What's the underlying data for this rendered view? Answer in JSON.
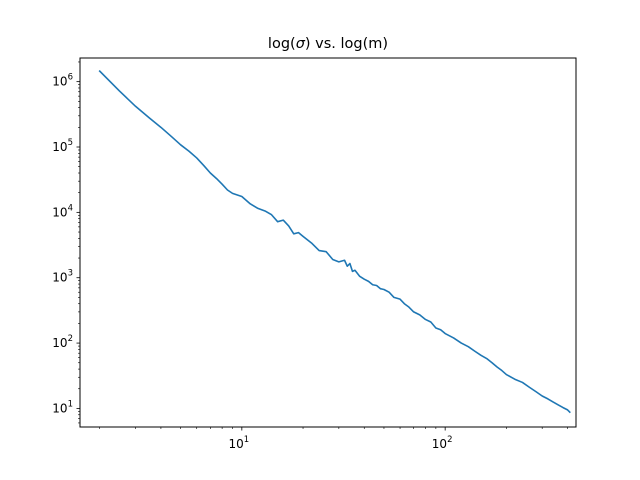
{
  "chart_data": {
    "type": "line",
    "title_parts": {
      "pre": "log(",
      "sym": "σ",
      "post": ") vs. log(m)"
    },
    "xlabel": "",
    "ylabel": "",
    "xscale": "log",
    "yscale": "log",
    "xlim": [
      1.6,
      440
    ],
    "ylim": [
      5.2,
      2300000
    ],
    "grid": false,
    "line_color": "#1f77b4",
    "x_ticks": [
      {
        "value": 10,
        "base": "10",
        "exp": "1"
      },
      {
        "value": 100,
        "base": "10",
        "exp": "2"
      }
    ],
    "y_ticks": [
      {
        "value": 10,
        "base": "10",
        "exp": "1"
      },
      {
        "value": 100,
        "base": "10",
        "exp": "2"
      },
      {
        "value": 1000,
        "base": "10",
        "exp": "3"
      },
      {
        "value": 10000,
        "base": "10",
        "exp": "4"
      },
      {
        "value": 100000,
        "base": "10",
        "exp": "5"
      },
      {
        "value": 1000000,
        "base": "10",
        "exp": "6"
      }
    ],
    "series": [
      {
        "x": [
          2,
          2.5,
          3,
          3.5,
          4,
          4.5,
          5,
          5.5,
          6,
          6.5,
          7,
          7.5,
          8,
          8.5,
          9,
          10,
          11,
          12,
          13,
          14,
          15,
          16,
          17,
          18,
          19,
          20,
          22,
          24,
          26,
          28,
          30,
          32,
          33,
          34,
          35,
          36,
          38,
          40,
          42,
          44,
          46,
          48,
          50,
          53,
          56,
          60,
          63,
          66,
          70,
          75,
          80,
          85,
          90,
          95,
          100,
          110,
          120,
          130,
          140,
          150,
          160,
          170,
          180,
          190,
          200,
          220,
          240,
          260,
          280,
          300,
          320,
          340,
          360,
          380,
          400,
          410
        ],
        "y": [
          1450000,
          720000,
          420000,
          280000,
          200000,
          145000,
          108000,
          86000,
          68000,
          52000,
          40000,
          33000,
          27000,
          22000,
          19500,
          17500,
          13500,
          11500,
          10500,
          9200,
          7200,
          7600,
          6200,
          4700,
          4900,
          4300,
          3400,
          2600,
          2500,
          1900,
          1750,
          1850,
          1500,
          1650,
          1250,
          1300,
          1050,
          950,
          880,
          780,
          760,
          680,
          660,
          600,
          500,
          470,
          400,
          360,
          300,
          270,
          230,
          210,
          170,
          160,
          140,
          120,
          100,
          88,
          75,
          65,
          58,
          50,
          43,
          38,
          33,
          28,
          25,
          21,
          18,
          15.5,
          14,
          12.5,
          11.3,
          10.3,
          9.5,
          8.8
        ]
      }
    ]
  }
}
